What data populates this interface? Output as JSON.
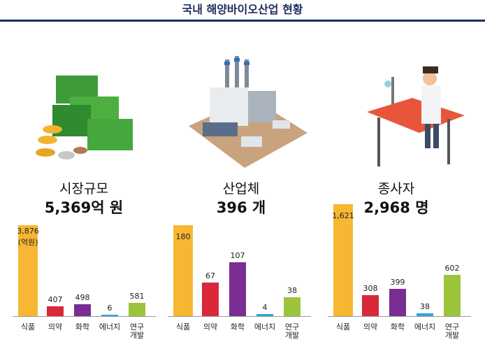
{
  "header": {
    "title": "국내 해양바이오산업 현황"
  },
  "chart_data": [
    {
      "type": "bar",
      "title": "시장규모",
      "subtitle": "5,369억 원",
      "categories": [
        "식품",
        "의약",
        "화학",
        "에너지",
        "연구 개발"
      ],
      "values": [
        3876,
        407,
        498,
        6,
        581
      ],
      "value_labels": [
        "3,876",
        "407",
        "498",
        "6",
        "581"
      ],
      "unit": "(억원)",
      "colors": [
        "#f7b733",
        "#d8283a",
        "#7a2d92",
        "#2aa7d9",
        "#9cc43b"
      ]
    },
    {
      "type": "bar",
      "title": "산업체",
      "subtitle": "396 개",
      "categories": [
        "식품",
        "의약",
        "화학",
        "에너지",
        "연구 개발"
      ],
      "values": [
        180,
        67,
        107,
        4,
        38
      ],
      "colors": [
        "#f7b733",
        "#d8283a",
        "#7a2d92",
        "#2aa7d9",
        "#9cc43b"
      ]
    },
    {
      "type": "bar",
      "title": "종사자",
      "subtitle": "2,968 명",
      "categories": [
        "식품",
        "의약",
        "화학",
        "에너지",
        "연구 개발"
      ],
      "values": [
        1621,
        308,
        399,
        38,
        602
      ],
      "value_labels": [
        "1,621",
        "308",
        "399",
        "38",
        "602"
      ],
      "colors": [
        "#f7b733",
        "#d8283a",
        "#7a2d92",
        "#2aa7d9",
        "#9cc43b"
      ]
    }
  ]
}
